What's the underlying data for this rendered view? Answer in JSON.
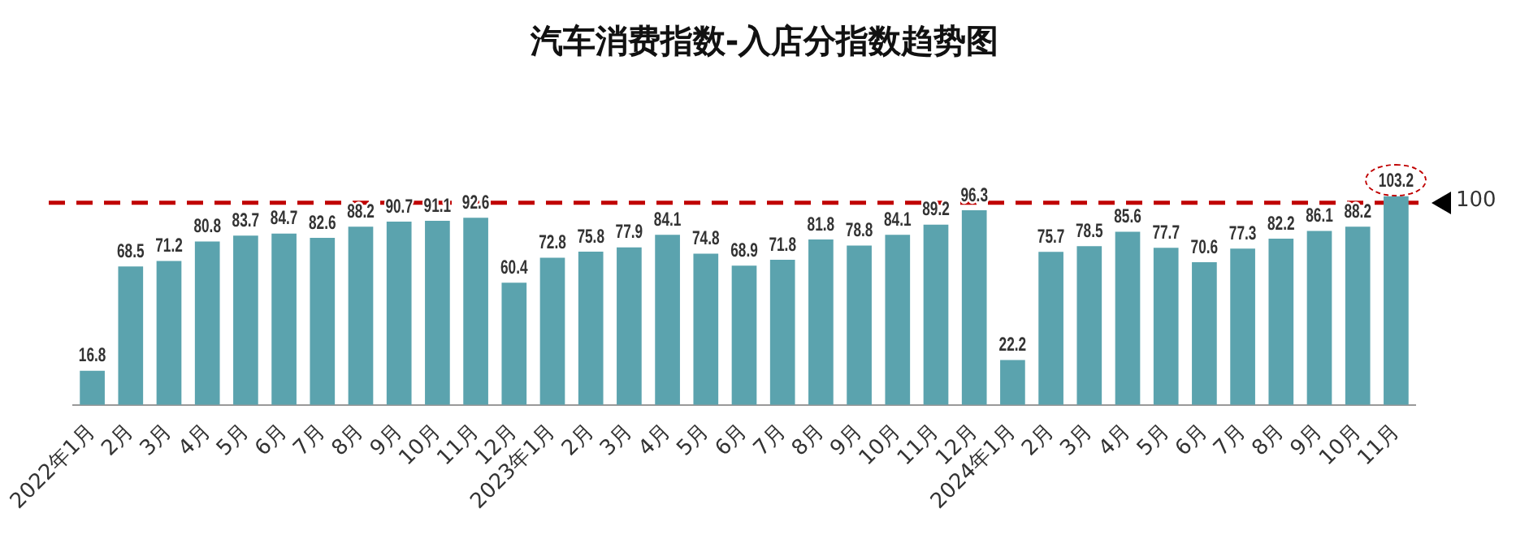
{
  "chart_data": {
    "type": "bar",
    "title": "汽车消费指数-入店分指数趋势图",
    "categories": [
      "2022年1月",
      "2月",
      "3月",
      "4月",
      "5月",
      "6月",
      "7月",
      "8月",
      "9月",
      "10月",
      "11月",
      "12月",
      "2023年1月",
      "2月",
      "3月",
      "4月",
      "5月",
      "6月",
      "7月",
      "8月",
      "9月",
      "10月",
      "11月",
      "12月",
      "2024年1月",
      "2月",
      "3月",
      "4月",
      "5月",
      "6月",
      "7月",
      "8月",
      "9月",
      "10月",
      "11月"
    ],
    "values": [
      16.8,
      68.5,
      71.2,
      80.8,
      83.7,
      84.7,
      82.6,
      88.2,
      90.7,
      91.1,
      92.6,
      60.4,
      72.8,
      75.8,
      77.9,
      84.1,
      74.8,
      68.9,
      71.8,
      81.8,
      78.8,
      84.1,
      89.2,
      96.3,
      22.2,
      75.7,
      78.5,
      85.6,
      77.7,
      70.6,
      77.3,
      82.2,
      86.1,
      88.2,
      103.2
    ],
    "color": "#5ba3ae",
    "data_labels": true,
    "grid": false,
    "legend": false,
    "ref_lines": [
      {
        "axis": "y",
        "value": 100,
        "label": "100",
        "color": "#c00000",
        "line_style": "dashed"
      }
    ]
  }
}
